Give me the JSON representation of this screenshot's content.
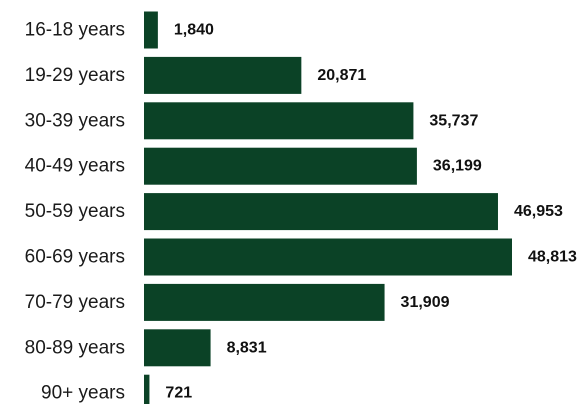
{
  "chart_data": {
    "type": "bar",
    "orientation": "horizontal",
    "categories": [
      "16-18 years",
      "19-29 years",
      "30-39 years",
      "40-49 years",
      "50-59 years",
      "60-69 years",
      "70-79 years",
      "80-89 years",
      "90+ years"
    ],
    "values": [
      1840,
      20871,
      35737,
      36199,
      46953,
      48813,
      31909,
      8831,
      721
    ],
    "value_labels": [
      "1,840",
      "20,871",
      "35,737",
      "36,199",
      "46,953",
      "48,813",
      "31,909",
      "8,831",
      "721"
    ],
    "title": "",
    "xlabel": "",
    "ylabel": "",
    "grid": false,
    "legend": "none"
  },
  "colors": {
    "bar": "#0b4226",
    "background": "#ffffff"
  }
}
